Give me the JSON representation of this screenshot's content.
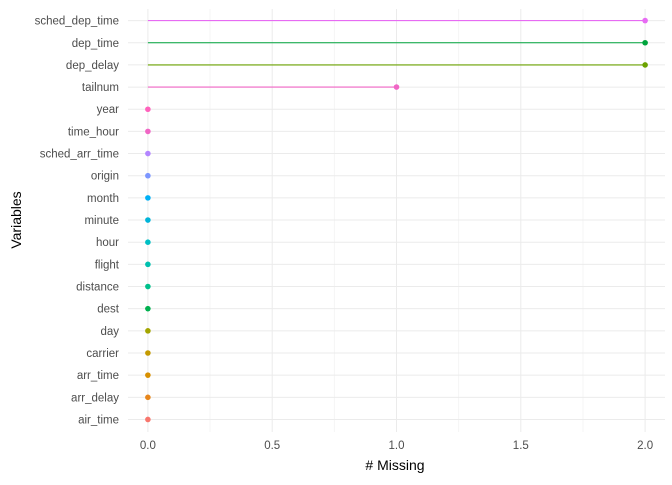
{
  "chart_data": {
    "type": "lollipop",
    "xlabel": "# Missing",
    "ylabel": "Variables",
    "xlim": [
      -0.08,
      2.08
    ],
    "x_ticks": [
      "0.0",
      "0.5",
      "1.0",
      "1.5",
      "2.0"
    ],
    "grid": true,
    "legend": "none",
    "categories": [
      "sched_dep_time",
      "dep_time",
      "dep_delay",
      "tailnum",
      "year",
      "time_hour",
      "sched_arr_time",
      "origin",
      "month",
      "minute",
      "hour",
      "flight",
      "distance",
      "dest",
      "day",
      "carrier",
      "arr_time",
      "arr_delay",
      "air_time"
    ],
    "values": [
      2,
      2,
      2,
      1,
      0,
      0,
      0,
      0,
      0,
      0,
      0,
      0,
      0,
      0,
      0,
      0,
      0,
      0,
      0
    ],
    "colors": [
      "#E76BF3",
      "#00A43C",
      "#6BA200",
      "#F066C5",
      "#FF62BC",
      "#F066C5",
      "#B385FF",
      "#7C96FF",
      "#00B0F6",
      "#00B4D9",
      "#00BFC4",
      "#00C0AF",
      "#00C08B",
      "#00B04F",
      "#A3A500",
      "#C49A00",
      "#D89000",
      "#E7861B",
      "#F8766D"
    ]
  }
}
